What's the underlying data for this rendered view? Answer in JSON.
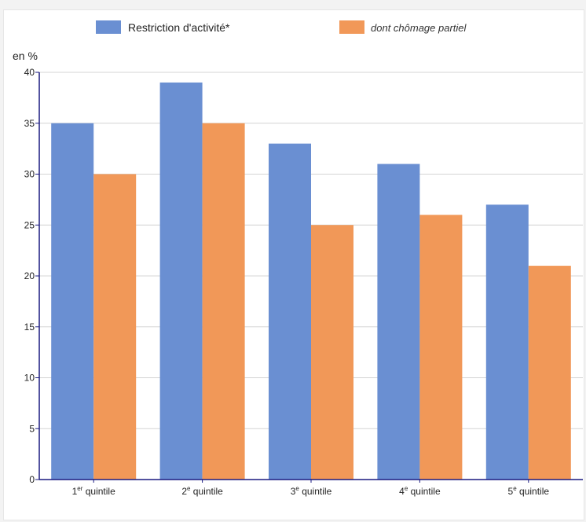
{
  "chart_data": {
    "type": "bar",
    "unit_label": "en %",
    "ylim": [
      0,
      40
    ],
    "yticks": [
      0,
      5,
      10,
      15,
      20,
      25,
      30,
      35,
      40
    ],
    "grid": true,
    "legend_position": "top",
    "categories": [
      {
        "base": "1",
        "sup": "er",
        "rest": " quintile"
      },
      {
        "base": "2",
        "sup": "e",
        "rest": " quintile"
      },
      {
        "base": "3",
        "sup": "e",
        "rest": " quintile"
      },
      {
        "base": "4",
        "sup": "e",
        "rest": " quintile"
      },
      {
        "base": "5",
        "sup": "e",
        "rest": " quintile"
      }
    ],
    "series": [
      {
        "name": "Restriction d'activité*",
        "color": "#6a8fd2",
        "italic": false,
        "values": [
          35,
          39,
          33,
          31,
          27
        ]
      },
      {
        "name": "dont chômage partiel",
        "color": "#f19858",
        "italic": true,
        "values": [
          30,
          35,
          25,
          26,
          21
        ]
      }
    ]
  }
}
